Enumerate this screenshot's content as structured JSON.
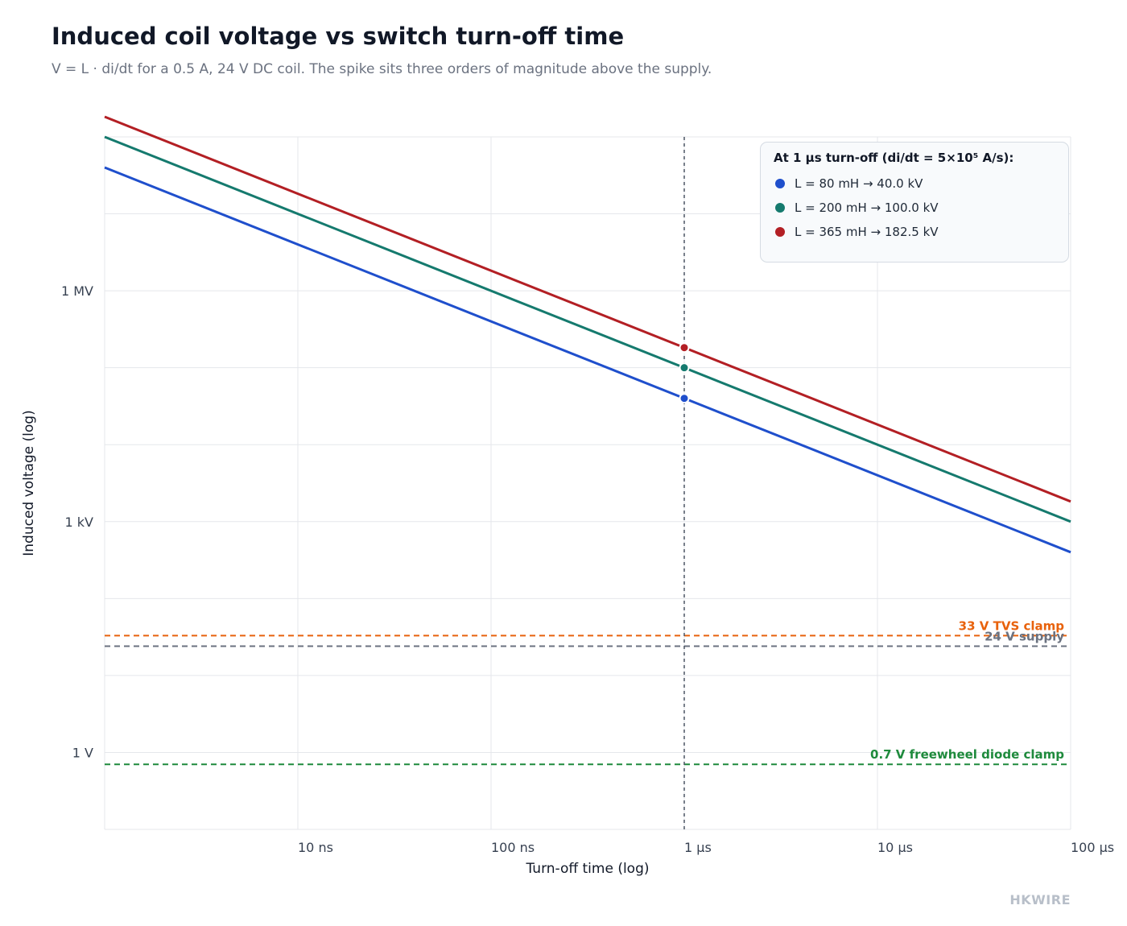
{
  "title": "Induced coil voltage vs switch turn-off time",
  "subtitle": "V = L · di/dt for a 0.5 A, 24 V DC coil. The spike sits three orders of magnitude above the supply.",
  "brand": "HKWIRE",
  "chart_data": {
    "type": "line",
    "x_scale": "log",
    "y_scale": "log",
    "xlabel": "Turn-off time (log)",
    "ylabel": "Induced voltage (log)",
    "x_unit": "s",
    "y_unit": "V",
    "xlim": [
      1e-09,
      0.0001
    ],
    "ylim": [
      0.1,
      100000000.0
    ],
    "x_ticks": [
      {
        "value": 1e-08,
        "label": "10 ns"
      },
      {
        "value": 1e-07,
        "label": "100 ns"
      },
      {
        "value": 1e-06,
        "label": "1 µs"
      },
      {
        "value": 1e-05,
        "label": "10 µs"
      },
      {
        "value": 0.0001,
        "label": "100 µs"
      }
    ],
    "y_ticks": [
      {
        "value": 1,
        "label": "1 V"
      },
      {
        "value": 1000,
        "label": "1 kV"
      },
      {
        "value": 1000000,
        "label": "1 MV"
      }
    ],
    "grid": true,
    "series": [
      {
        "name": "L = 80 mH",
        "color": "#1f4fcc",
        "x": [
          1e-09,
          0.0001
        ],
        "y": [
          40000000,
          400
        ]
      },
      {
        "name": "L = 200 mH",
        "color": "#157a6e",
        "x": [
          1e-09,
          0.0001
        ],
        "y": [
          100000000,
          1000
        ]
      },
      {
        "name": "L = 365 mH",
        "color": "#b31f24",
        "x": [
          1e-09,
          0.0001
        ],
        "y": [
          182500000,
          1825
        ]
      }
    ],
    "markers": [
      {
        "x": 1e-06,
        "y": 40000,
        "color": "#1f4fcc"
      },
      {
        "x": 1e-06,
        "y": 100000,
        "color": "#157a6e"
      },
      {
        "x": 1e-06,
        "y": 182500,
        "color": "#b31f24"
      }
    ],
    "vertical_line": {
      "x": 1e-06,
      "color": "#4b5563"
    },
    "reference_lines": [
      {
        "label": "33 V TVS clamp",
        "y": 33,
        "color": "#e8620c"
      },
      {
        "label": "24 V supply",
        "y": 24,
        "color": "#6b7280"
      },
      {
        "label": "0.7 V freewheel diode clamp",
        "y": 0.7,
        "color": "#1e8a3c"
      }
    ],
    "legend": {
      "position": "top-right",
      "title": "At 1 µs turn-off (di/dt = 5×10⁵ A/s):",
      "entries": [
        {
          "label": "L = 80 mH → 40.0 kV",
          "color": "#1f4fcc"
        },
        {
          "label": "L = 200 mH → 100.0 kV",
          "color": "#157a6e"
        },
        {
          "label": "L = 365 mH → 182.5 kV",
          "color": "#b31f24"
        }
      ]
    }
  }
}
